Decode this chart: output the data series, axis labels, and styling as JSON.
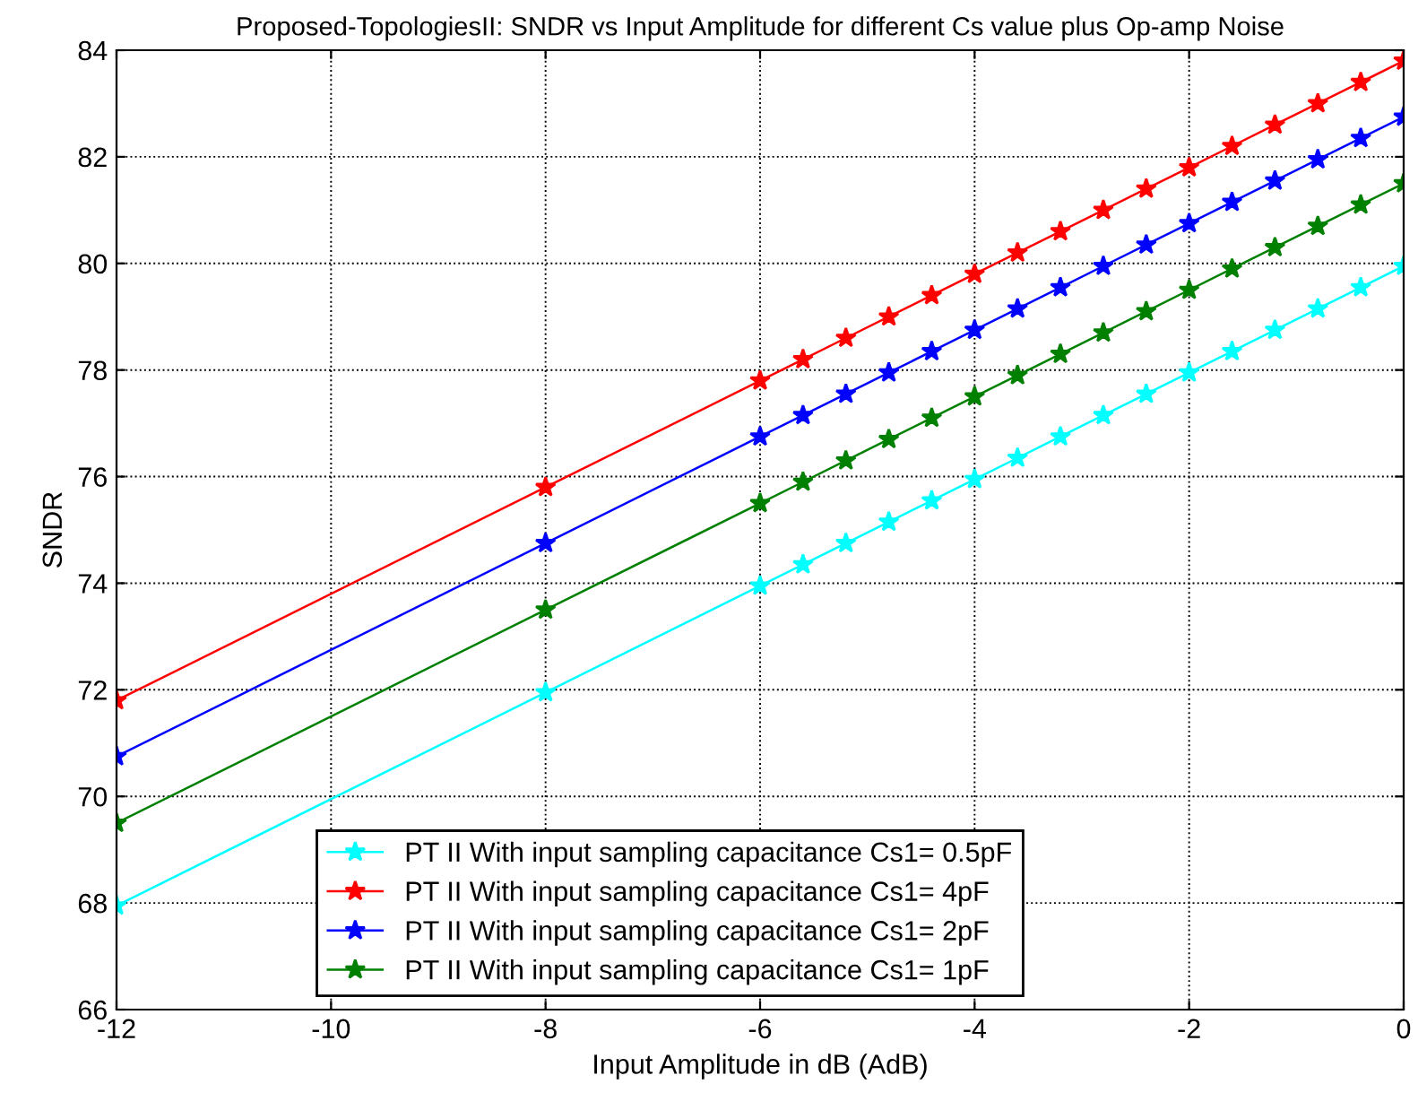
{
  "chart_data": {
    "type": "line",
    "title": "Proposed-TopologiesII: SNDR vs Input Amplitude for different Cs value plus Op-amp Noise",
    "xlabel": "Input Amplitude in dB (AdB)",
    "ylabel": "SNDR",
    "x": [
      -12,
      -8,
      -6,
      -5.6,
      -5.2,
      -4.8,
      -4.4,
      -4,
      -3.6,
      -3.2,
      -2.8,
      -2.4,
      -2,
      -1.6,
      -1.2,
      -0.8,
      -0.4,
      0
    ],
    "series": [
      {
        "name": "PT II With input sampling capacitance Cs1= 0.5pF",
        "color": "#00ffff",
        "values": [
          67.95,
          71.95,
          73.95,
          74.35,
          74.75,
          75.15,
          75.55,
          75.95,
          76.35,
          76.75,
          77.15,
          77.55,
          77.95,
          78.35,
          78.75,
          79.15,
          79.55,
          79.95
        ]
      },
      {
        "name": "PT II With input sampling capacitance Cs1= 4pF",
        "color": "#ff0000",
        "values": [
          71.8,
          75.8,
          77.8,
          78.2,
          78.6,
          79.0,
          79.4,
          79.8,
          80.2,
          80.6,
          81.0,
          81.4,
          81.8,
          82.2,
          82.6,
          83.0,
          83.4,
          83.8
        ]
      },
      {
        "name": "PT II With input sampling capacitance Cs1= 2pF",
        "color": "#0000ff",
        "values": [
          70.75,
          74.75,
          76.75,
          77.15,
          77.55,
          77.95,
          78.35,
          78.75,
          79.15,
          79.55,
          79.95,
          80.35,
          80.75,
          81.15,
          81.55,
          81.95,
          82.35,
          82.75
        ]
      },
      {
        "name": "PT II With input sampling capacitance Cs1= 1pF",
        "color": "#008000",
        "values": [
          69.5,
          73.5,
          75.5,
          75.9,
          76.3,
          76.7,
          77.1,
          77.5,
          77.9,
          78.3,
          78.7,
          79.1,
          79.5,
          79.9,
          80.3,
          80.7,
          81.1,
          81.5
        ]
      }
    ],
    "xlim": [
      -12,
      0
    ],
    "xticks": [
      -12,
      -10,
      -8,
      -6,
      -4,
      -2,
      0
    ],
    "ylim": [
      66,
      84
    ],
    "yticks": [
      66,
      68,
      70,
      72,
      74,
      76,
      78,
      80,
      82,
      84
    ],
    "grid": true,
    "legend": "bottom",
    "marker": "star",
    "line_style": "solid"
  }
}
